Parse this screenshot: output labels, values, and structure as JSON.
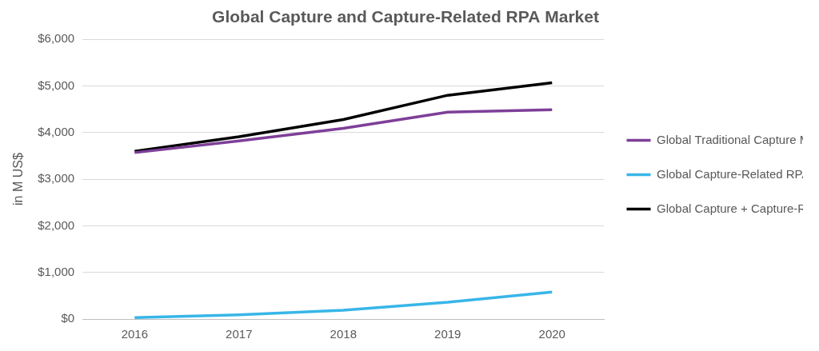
{
  "chart_data": {
    "type": "line",
    "title": "Global Capture and Capture-Related RPA Market",
    "y_label": "in M US$",
    "categories": [
      "2016",
      "2017",
      "2018",
      "2019",
      "2020"
    ],
    "series": [
      {
        "name": "Global Traditional Capture Market",
        "color": "#7e3f98",
        "values": [
          3570,
          3820,
          4090,
          4440,
          4490
        ]
      },
      {
        "name": "Global Capture-Related RPA Market",
        "color": "#38b6e8",
        "values": [
          30,
          90,
          190,
          360,
          580
        ]
      },
      {
        "name": "Global Capture + Capture-Related RPA Market",
        "color": "#000000",
        "values": [
          3600,
          3910,
          4280,
          4800,
          5070
        ]
      }
    ],
    "ylim": [
      0,
      6000
    ],
    "yticks": [
      {
        "value": 0,
        "label": "$0"
      },
      {
        "value": 1000,
        "label": "$1,000"
      },
      {
        "value": 2000,
        "label": "$2,000"
      },
      {
        "value": 3000,
        "label": "$3,000"
      },
      {
        "value": 4000,
        "label": "$4,000"
      },
      {
        "value": 5000,
        "label": "$5,000"
      },
      {
        "value": 6000,
        "label": "$6,000"
      }
    ],
    "grid": true,
    "legend": "right"
  }
}
